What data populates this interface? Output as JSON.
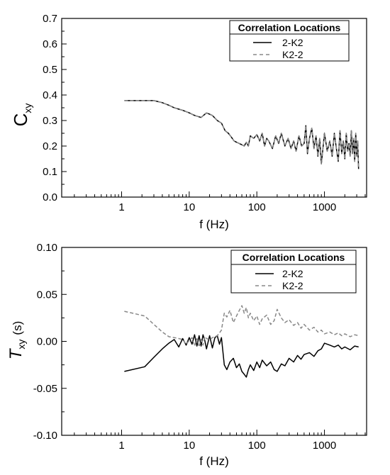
{
  "chart_data": [
    {
      "type": "line",
      "xlabel": "f (Hz)",
      "ylabel": "C",
      "ylabel_sub": "xy",
      "xscale": "log",
      "xlim": [
        0.13,
        4200
      ],
      "ylim": [
        0.0,
        0.7
      ],
      "x_ticks": [
        1,
        10,
        100,
        1000
      ],
      "x_tick_labels": [
        "1",
        "10",
        "100",
        "1000"
      ],
      "y_ticks": [
        0.0,
        0.1,
        0.2,
        0.3,
        0.4,
        0.5,
        0.6,
        0.7
      ],
      "y_tick_labels": [
        "0.0",
        "0.1",
        "0.2",
        "0.3",
        "0.4",
        "0.5",
        "0.6",
        "0.7"
      ],
      "grid": false,
      "legend": {
        "title": "Correlation Locations",
        "position": "top-right",
        "entries": [
          "2-K2",
          "K2-2"
        ]
      },
      "series": [
        {
          "name": "2-K2",
          "color": "#000000",
          "dash": "solid",
          "x": [
            1.1,
            1.5,
            2,
            3,
            4,
            5,
            6,
            8,
            10,
            12,
            15,
            18,
            22,
            26,
            30,
            34,
            38,
            42,
            46,
            50,
            55,
            60,
            65,
            70,
            75,
            80,
            90,
            100,
            110,
            120,
            130,
            140,
            150,
            170,
            190,
            210,
            230,
            260,
            290,
            320,
            350,
            380,
            420,
            460,
            500,
            530,
            560,
            600,
            650,
            700,
            750,
            800,
            850,
            900,
            1000,
            1100,
            1200,
            1300,
            1400,
            1500,
            1600,
            1700,
            1800,
            1900,
            2000,
            2100,
            2200,
            2300,
            2400,
            2500,
            2600,
            2700,
            2800,
            2900,
            3000,
            3100,
            3200
          ],
          "y": [
            0.378,
            0.378,
            0.378,
            0.378,
            0.37,
            0.36,
            0.35,
            0.34,
            0.33,
            0.32,
            0.312,
            0.33,
            0.32,
            0.3,
            0.29,
            0.26,
            0.25,
            0.235,
            0.22,
            0.215,
            0.21,
            0.205,
            0.2,
            0.215,
            0.2,
            0.24,
            0.23,
            0.245,
            0.22,
            0.25,
            0.2,
            0.23,
            0.22,
            0.19,
            0.24,
            0.21,
            0.25,
            0.2,
            0.23,
            0.19,
            0.22,
            0.18,
            0.24,
            0.2,
            0.21,
            0.28,
            0.17,
            0.23,
            0.27,
            0.19,
            0.24,
            0.16,
            0.23,
            0.13,
            0.25,
            0.18,
            0.22,
            0.16,
            0.25,
            0.19,
            0.14,
            0.26,
            0.17,
            0.22,
            0.15,
            0.25,
            0.18,
            0.21,
            0.16,
            0.26,
            0.17,
            0.23,
            0.14,
            0.25,
            0.16,
            0.22,
            0.11
          ]
        },
        {
          "name": "K2-2",
          "color": "#888888",
          "dash": "dashed",
          "x": [
            1.1,
            1.5,
            2,
            3,
            4,
            5,
            6,
            8,
            10,
            12,
            15,
            18,
            22,
            26,
            30,
            34,
            38,
            42,
            46,
            50,
            55,
            60,
            65,
            70,
            75,
            80,
            90,
            100,
            110,
            120,
            130,
            140,
            150,
            170,
            190,
            210,
            230,
            260,
            290,
            320,
            350,
            380,
            420,
            460,
            500,
            530,
            560,
            600,
            650,
            700,
            750,
            800,
            850,
            900,
            1000,
            1100,
            1200,
            1300,
            1400,
            1500,
            1600,
            1700,
            1800,
            1900,
            2000,
            2100,
            2200,
            2300,
            2400,
            2500,
            2600,
            2700,
            2800,
            2900,
            3000,
            3100,
            3200
          ],
          "y": [
            0.378,
            0.378,
            0.378,
            0.378,
            0.37,
            0.36,
            0.35,
            0.34,
            0.33,
            0.32,
            0.312,
            0.33,
            0.32,
            0.3,
            0.29,
            0.26,
            0.25,
            0.235,
            0.22,
            0.215,
            0.21,
            0.205,
            0.2,
            0.215,
            0.2,
            0.24,
            0.23,
            0.245,
            0.22,
            0.25,
            0.2,
            0.23,
            0.22,
            0.19,
            0.24,
            0.21,
            0.25,
            0.2,
            0.23,
            0.19,
            0.22,
            0.18,
            0.24,
            0.2,
            0.21,
            0.28,
            0.17,
            0.23,
            0.27,
            0.19,
            0.24,
            0.16,
            0.23,
            0.13,
            0.25,
            0.18,
            0.22,
            0.16,
            0.25,
            0.19,
            0.14,
            0.26,
            0.17,
            0.22,
            0.15,
            0.25,
            0.18,
            0.21,
            0.16,
            0.26,
            0.17,
            0.23,
            0.14,
            0.25,
            0.16,
            0.22,
            0.11
          ]
        }
      ]
    },
    {
      "type": "line",
      "xlabel": "f (Hz)",
      "ylabel": "T",
      "ylabel_sub": "xy",
      "ylabel_unit": "(s)",
      "xscale": "log",
      "xlim": [
        0.13,
        4200
      ],
      "ylim": [
        -0.1,
        0.1
      ],
      "x_ticks": [
        1,
        10,
        100,
        1000
      ],
      "x_tick_labels": [
        "1",
        "10",
        "100",
        "1000"
      ],
      "y_ticks": [
        -0.1,
        -0.05,
        0.0,
        0.05,
        0.1
      ],
      "y_tick_labels": [
        "-0.10",
        "-0.05",
        "0.00",
        "0.05",
        "0.10"
      ],
      "grid": false,
      "legend": {
        "title": "Correlation Locations",
        "position": "top-right",
        "entries": [
          "2-K2",
          "K2-2"
        ]
      },
      "series": [
        {
          "name": "2-K2",
          "color": "#000000",
          "dash": "solid",
          "x": [
            1.1,
            2.2,
            3,
            4,
            5,
            6,
            7,
            8,
            9,
            10,
            11,
            12,
            13,
            14,
            15,
            16,
            17,
            18,
            20,
            22,
            24,
            26,
            28,
            30,
            33,
            36,
            40,
            45,
            50,
            55,
            60,
            65,
            70,
            75,
            80,
            90,
            100,
            110,
            120,
            140,
            160,
            180,
            200,
            230,
            260,
            300,
            350,
            400,
            450,
            500,
            600,
            700,
            800,
            900,
            1000,
            1200,
            1400,
            1600,
            1800,
            2000,
            2400,
            2800,
            3200
          ],
          "y": [
            -0.032,
            -0.027,
            -0.017,
            -0.008,
            -0.002,
            0.002,
            -0.006,
            0.003,
            -0.004,
            0.004,
            -0.003,
            0.007,
            -0.005,
            0.006,
            -0.005,
            0.007,
            0.001,
            -0.008,
            0.006,
            -0.007,
            0.004,
            0.006,
            -0.003,
            0.004,
            -0.025,
            -0.03,
            -0.022,
            -0.018,
            -0.028,
            -0.024,
            -0.032,
            -0.035,
            -0.038,
            -0.03,
            -0.025,
            -0.031,
            -0.022,
            -0.028,
            -0.02,
            -0.026,
            -0.022,
            -0.03,
            -0.032,
            -0.024,
            -0.026,
            -0.018,
            -0.022,
            -0.015,
            -0.019,
            -0.014,
            -0.012,
            -0.016,
            -0.01,
            -0.008,
            -0.002,
            -0.004,
            -0.006,
            -0.004,
            -0.008,
            -0.006,
            -0.009,
            -0.005,
            -0.006
          ]
        },
        {
          "name": "K2-2",
          "color": "#888888",
          "dash": "dashed",
          "x": [
            1.1,
            2.2,
            3,
            4,
            5,
            6,
            7,
            8,
            9,
            10,
            11,
            12,
            13,
            14,
            15,
            16,
            17,
            18,
            20,
            22,
            24,
            26,
            28,
            30,
            33,
            36,
            40,
            45,
            50,
            55,
            60,
            65,
            70,
            75,
            80,
            90,
            100,
            110,
            120,
            140,
            160,
            180,
            200,
            230,
            260,
            300,
            350,
            400,
            450,
            500,
            600,
            700,
            800,
            900,
            1000,
            1200,
            1400,
            1600,
            1800,
            2000,
            2400,
            2800,
            3200
          ],
          "y": [
            0.032,
            0.027,
            0.018,
            0.01,
            0.005,
            0.004,
            0.003,
            0.002,
            -0.003,
            0.001,
            0.004,
            -0.005,
            0.003,
            -0.006,
            0.002,
            -0.004,
            0.005,
            0.003,
            0.002,
            0.004,
            0.005,
            0.006,
            0.009,
            0.012,
            0.03,
            0.026,
            0.033,
            0.02,
            0.027,
            0.033,
            0.038,
            0.03,
            0.036,
            0.025,
            0.03,
            0.022,
            0.027,
            0.018,
            0.024,
            0.028,
            0.018,
            0.022,
            0.034,
            0.025,
            0.02,
            0.023,
            0.017,
            0.02,
            0.014,
            0.018,
            0.012,
            0.015,
            0.01,
            0.012,
            0.008,
            0.01,
            0.007,
            0.009,
            0.006,
            0.008,
            0.005,
            0.007,
            0.006
          ]
        }
      ]
    }
  ]
}
